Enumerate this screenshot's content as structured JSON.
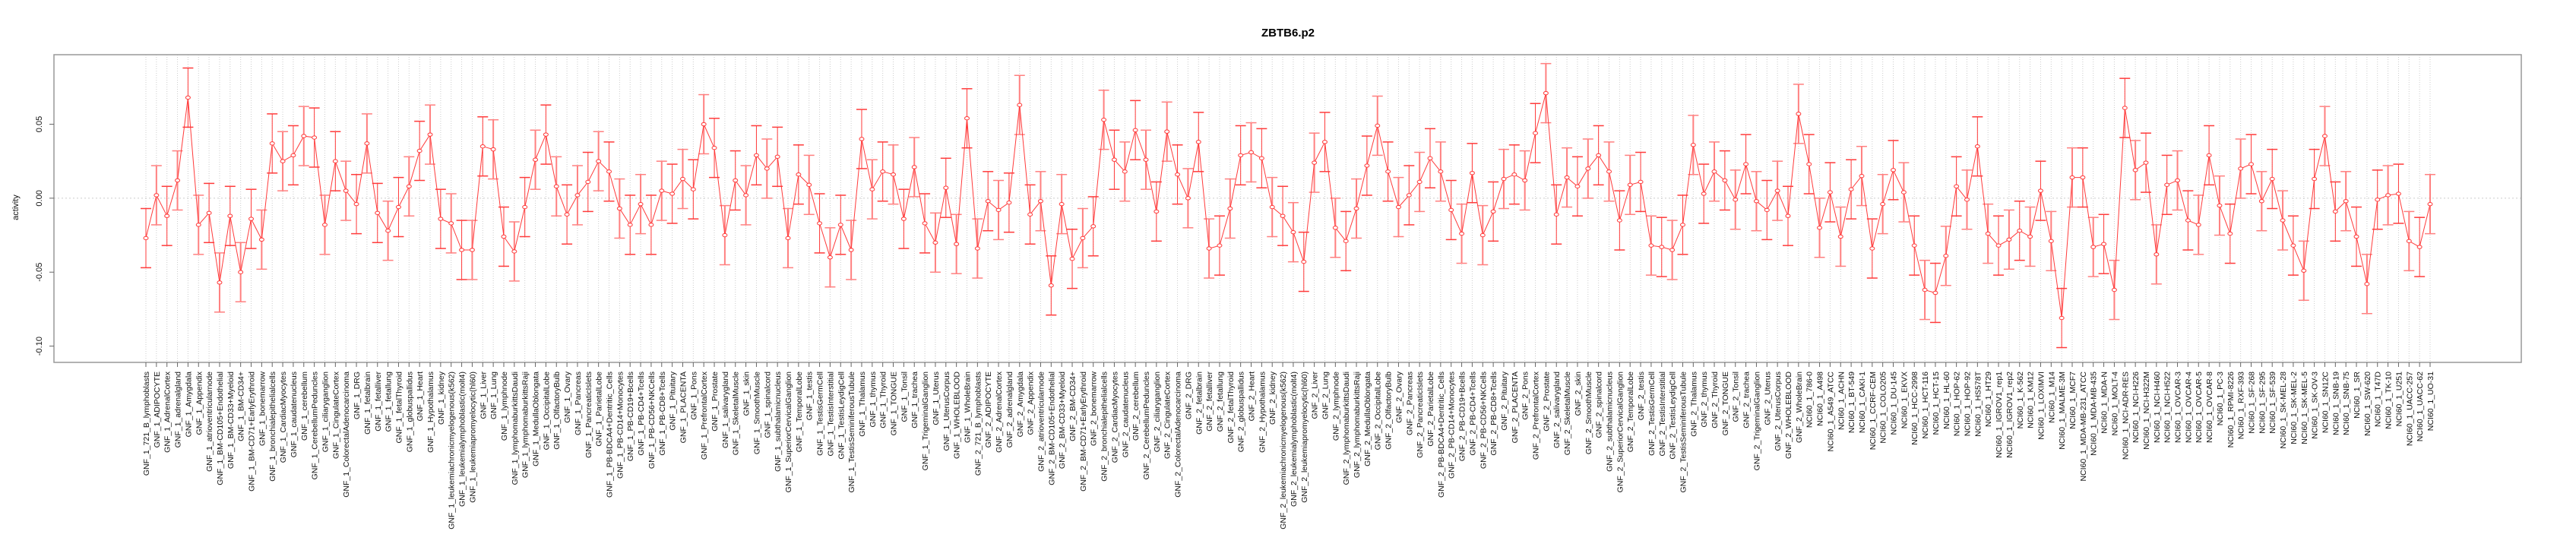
{
  "chart_data": {
    "type": "line",
    "title": "ZBTB6.p2",
    "xlabel": "",
    "ylabel": "activity",
    "ylim": [
      -0.111,
      0.097
    ],
    "yticks": [
      0.05,
      0.0,
      -0.05,
      -0.1
    ],
    "ytick_labels": [
      "0.05",
      "0.00",
      "-0.05",
      "-0.10"
    ],
    "grid": "vertical dotted per category, horizontal dotted at 0",
    "error_bar_halfwidth_approx": 0.02,
    "colors": {
      "series": "#ff3b3b",
      "errorbar": "#ff8080",
      "grid": "#cccccc",
      "box": "#999999"
    },
    "categories": [
      "GNF_1_721_B_lymphoblasts",
      "GNF_1_ADIPOCYTE",
      "GNF_1_AdrenalCortex",
      "GNF_1_adrenalgland",
      "GNF_1_Amygdala",
      "GNF_1_Appendix",
      "GNF_1_atrioventricularnode",
      "GNF_1_BM-CD105+Endothelial",
      "GNF_1_BM-CD33+Myeloid",
      "GNF_1_BM-CD34+",
      "GNF_1_BM-CD71+EarlyErythroid",
      "GNF_1_bonemarrow",
      "GNF_1_bronchialepithelialcells",
      "GNF_1_CardiacMyocytes",
      "GNF_1_caudatenucleus",
      "GNF_1_cerebellum",
      "GNF_1_CerebellumPeduncles",
      "GNF_1_ciliaryganglion",
      "GNF_1_CingulateCortex",
      "GNF_1_ColorectalAdenocarcinoma",
      "GNF_1_DRG",
      "GNF_1_fetalbrain",
      "GNF_1_fetalliver",
      "GNF_1_fetallung",
      "GNF_1_fetalThyroid",
      "GNF_1_globuspallidus",
      "GNF_1_Heart",
      "GNF_1_Hypothalamus",
      "GNF_1_kidney",
      "GNF_1_leukemiachronicmyelogenous(k562)",
      "GNF_1_leukemialymphoblastic(molt4)",
      "GNF_1_leukemiapromyelocytic(hl60)",
      "GNF_1_Liver",
      "GNF_1_Lung",
      "GNF_1_lymphnode",
      "GNF_1_lymphomaburkittsDaudi",
      "GNF_1_lymphomaburkittsRaji",
      "GNF_1_MedullaOblongata",
      "GNF_1_OccipitalLobe",
      "GNF_1_OlfactoryBulb",
      "GNF_1_Ovary",
      "GNF_1_Pancreas",
      "GNF_1_PancreaticIslets",
      "GNF_1_ParietalLobe",
      "GNF_1_PB-BDCA4+Dentritic_Cells",
      "GNF_1_PB-CD14+Monocytes",
      "GNF_1_PB-CD19+Bcells",
      "GNF_1_PB-CD4+Tcells",
      "GNF_1_PB-CD56+NKCells",
      "GNF_1_PB-CD8+Tcells",
      "GNF_1_Pituitary",
      "GNF_1_PLACENTA",
      "GNF_1_Pons",
      "GNF_1_PrefrontalCortex",
      "GNF_1_Prostate",
      "GNF_1_salivarygland",
      "GNF_1_SkeletalMuscle",
      "GNF_1_skin",
      "GNF_1_SmoothMuscle",
      "GNF_1_spinalcord",
      "GNF_1_subthalamicnucleus",
      "GNF_1_SuperiorCervicalGanglion",
      "GNF_1_TemporalLobe",
      "GNF_1_testis",
      "GNF_1_TestisGermCell",
      "GNF_1_TestisInterstitial",
      "GNF_1_TestisLeydigCell",
      "GNF_1_TestisSeminiferousTubule",
      "GNF_1_Thalamus",
      "GNF_1_thymus",
      "GNF_1_Thyroid",
      "GNF_1_TONGUE",
      "GNF_1_Tonsil",
      "GNF_1_trachea",
      "GNF_1_TrigeminalGanglion",
      "GNF_1_Uterus",
      "GNF_1_UterusCorpus",
      "GNF_1_WHOLEBLOOD",
      "GNF_1_WholeBrain",
      "GNF_2_721_B_lymphoblasts",
      "GNF_2_ADIPOCYTE",
      "GNF_2_AdrenalCortex",
      "GNF_2_adrenalgland",
      "GNF_2_Amygdala",
      "GNF_2_Appendix",
      "GNF_2_atrioventricularnode",
      "GNF_2_BM-CD105+Endothelial",
      "GNF_2_BM-CD33+Myeloid",
      "GNF_2_BM-CD34+",
      "GNF_2_BM-CD71+EarlyErythroid",
      "GNF_2_bonemarrow",
      "GNF_2_bronchialepithelialcells",
      "GNF_2_CardiacMyocytes",
      "GNF_2_caudatenucleus",
      "GNF_2_cerebellum",
      "GNF_2_CerebellumPeduncles",
      "GNF_2_ciliaryganglion",
      "GNF_2_CingulateCortex",
      "GNF_2_ColorectalAdenocarcinoma",
      "GNF_2_DRG",
      "GNF_2_fetalbrain",
      "GNF_2_fetalliver",
      "GNF_2_fetallung",
      "GNF_2_fetalThyroid",
      "GNF_2_globuspallidus",
      "GNF_2_Heart",
      "GNF_2_Hypothalamus",
      "GNF_2_kidney",
      "GNF_2_leukemiachronicmyelogenous(k562)",
      "GNF_2_leukemialymphoblastic(molt4)",
      "GNF_2_leukemiapromyelocytic(hl60)",
      "GNF_2_Liver",
      "GNF_2_Lung",
      "GNF_2_lymphnode",
      "GNF_2_lymphomaburkittsDaudi",
      "GNF_2_lymphomaburkittsRaji",
      "GNF_2_MedullaOblongata",
      "GNF_2_OccipitalLobe",
      "GNF_2_OlfactoryBulb",
      "GNF_2_Ovary",
      "GNF_2_Pancreas",
      "GNF_2_PancreaticIslets",
      "GNF_2_ParietalLobe",
      "GNF_2_PB-BDCA4+Dentritic_Cells",
      "GNF_2_PB-CD14+Monocytes",
      "GNF_2_PB-CD19+Bcells",
      "GNF_2_PB-CD4+Tcells",
      "GNF_2_PB-CD56+NKCells",
      "GNF_2_PB-CD8+Tcells",
      "GNF_2_Pituitary",
      "GNF_2_PLACENTA",
      "GNF_2_Pons",
      "GNF_2_PrefrontalCortex",
      "GNF_2_Prostate",
      "GNF_2_salivarygland",
      "GNF_2_SkeletalMuscle",
      "GNF_2_skin",
      "GNF_2_SmoothMuscle",
      "GNF_2_spinalcord",
      "GNF_2_subthalamicnucleus",
      "GNF_2_SuperiorCervicalGanglion",
      "GNF_2_TemporalLobe",
      "GNF_2_testis",
      "GNF_2_TestisGermCell",
      "GNF_2_TestisInterstitial",
      "GNF_2_TestisLeydigCell",
      "GNF_2_TestisSeminiferousTubule",
      "GNF_2_Thalamus",
      "GNF_2_thymus",
      "GNF_2_Thyroid",
      "GNF_2_TONGUE",
      "GNF_2_Tonsil",
      "GNF_2_trachea",
      "GNF_2_TrigeminalGanglion",
      "GNF_2_Uterus",
      "GNF_2_UterusCorpus",
      "GNF_2_WHOLEBLOOD",
      "GNF_2_WholeBrain",
      "NCI60_1_786-0",
      "NCI60_1_A498",
      "NCI60_1_A549_ATCC",
      "NCI60_1_ACHN",
      "NCI60_1_BT-549",
      "NCI60_1_CAKI-1",
      "NCI60_1_CCRF-CEM",
      "NCI60_1_COLO205",
      "NCI60_1_DU-145",
      "NCI60_1_EKVX",
      "NCI60_1_HCC-2998",
      "NCI60_1_HCT-116",
      "NCI60_1_HCT-15",
      "NCI60_1_HL-60",
      "NCI60_1_HOP-62",
      "NCI60_1_HOP-92",
      "NCI60_1_HS578T",
      "NCI60_1_HT29",
      "NCI60_1_IGROV1_rep1",
      "NCI60_1_IGROV1_rep2",
      "NCI60_1_K-562",
      "NCI60_1_KM12",
      "NCI60_1_LOXIMVI",
      "NCI60_1_M14",
      "NCI60_1_MALME-3M",
      "NCI60_1_MCF7",
      "NCI60_1_MDA-MB-231_ATCC",
      "NCI60_1_MDA-MB-435",
      "NCI60_1_MDA-N",
      "NCI60_1_MOLT-4",
      "NCI60_1_NCI-ADR-RES",
      "NCI60_1_NCI-H226",
      "NCI60_1_NCI-H322M",
      "NCI60_1_NCI-H460",
      "NCI60_1_NCI-H522",
      "NCI60_1_OVCAR-3",
      "NCI60_1_OVCAR-4",
      "NCI60_1_OVCAR-5",
      "NCI60_1_OVCAR-8",
      "NCI60_1_PC-3",
      "NCI60_1_RPMI-8226",
      "NCI60_1_RXF-393",
      "NCI60_1_SF-268",
      "NCI60_1_SF-295",
      "NCI60_1_SF-539",
      "NCI60_1_SK-MEL-28",
      "NCI60_1_SK-MEL-2",
      "NCI60_1_SK-MEL-5",
      "NCI60_1_SK-OV-3",
      "NCI60_1_SN12C",
      "NCI60_1_SNB-19",
      "NCI60_1_SNB-75",
      "NCI60_1_SR",
      "NCI60_1_SW-620",
      "NCI60_1_T47D",
      "NCI60_1_TK-10",
      "NCI60_1_U251",
      "NCI60_1_UACC-257",
      "NCI60_1_UACC-62",
      "NCI60_1_UO-31"
    ],
    "series": [
      {
        "name": "ZBTB6.p2",
        "values": [
          -0.027,
          0.002,
          -0.012,
          0.012,
          0.068,
          -0.018,
          -0.01,
          -0.057,
          -0.012,
          -0.05,
          -0.014,
          -0.028,
          0.037,
          0.025,
          0.029,
          0.042,
          0.041,
          -0.018,
          0.025,
          0.005,
          -0.004,
          0.037,
          -0.01,
          -0.022,
          -0.006,
          0.008,
          0.032,
          0.043,
          -0.014,
          -0.017,
          -0.035,
          -0.035,
          0.035,
          0.033,
          -0.026,
          -0.036,
          -0.006,
          0.026,
          0.043,
          0.008,
          -0.011,
          0.002,
          0.011,
          0.025,
          0.018,
          -0.007,
          -0.018,
          -0.004,
          -0.018,
          0.005,
          0.003,
          0.013,
          0.006,
          0.05,
          0.034,
          -0.025,
          0.012,
          0.002,
          0.029,
          0.02,
          0.028,
          -0.027,
          0.016,
          0.009,
          -0.017,
          -0.04,
          -0.018,
          -0.035,
          0.04,
          0.006,
          0.018,
          0.016,
          -0.014,
          0.021,
          -0.017,
          -0.03,
          0.007,
          -0.031,
          0.054,
          -0.034,
          -0.002,
          -0.008,
          -0.003,
          0.063,
          -0.011,
          -0.002,
          -0.059,
          -0.004,
          -0.041,
          -0.027,
          -0.019,
          0.053,
          0.026,
          0.018,
          0.046,
          0.026,
          -0.009,
          0.045,
          0.016,
          0.0,
          0.038,
          -0.034,
          -0.032,
          -0.007,
          0.029,
          0.031,
          0.027,
          -0.006,
          -0.012,
          -0.023,
          -0.043,
          0.024,
          0.038,
          -0.02,
          -0.029,
          -0.007,
          0.022,
          0.049,
          0.018,
          -0.006,
          0.002,
          0.011,
          0.027,
          0.018,
          -0.008,
          -0.024,
          0.017,
          -0.025,
          -0.009,
          0.013,
          0.016,
          0.012,
          0.044,
          0.071,
          -0.011,
          0.014,
          0.008,
          0.02,
          0.029,
          0.018,
          -0.015,
          0.009,
          0.011,
          -0.032,
          -0.033,
          -0.035,
          -0.018,
          0.036,
          0.003,
          0.018,
          0.012,
          -0.001,
          0.023,
          -0.002,
          -0.008,
          0.005,
          -0.012,
          0.057,
          0.023,
          -0.02,
          0.004,
          -0.026,
          0.006,
          0.015,
          -0.034,
          -0.004,
          0.019,
          0.004,
          -0.032,
          -0.062,
          -0.064,
          -0.039,
          0.008,
          -0.001,
          0.035,
          -0.024,
          -0.032,
          -0.028,
          -0.022,
          -0.026,
          0.005,
          -0.029,
          -0.081,
          0.014,
          0.014,
          -0.033,
          -0.031,
          -0.062,
          0.061,
          0.019,
          0.024,
          -0.038,
          0.009,
          0.012,
          -0.015,
          -0.018,
          0.029,
          -0.005,
          -0.024,
          0.02,
          0.023,
          -0.002,
          0.013,
          -0.015,
          -0.032,
          -0.049,
          0.013,
          0.042,
          -0.009,
          -0.002,
          -0.026,
          -0.058,
          -0.001,
          0.002,
          0.003,
          -0.029,
          -0.033,
          -0.004
        ]
      }
    ]
  }
}
